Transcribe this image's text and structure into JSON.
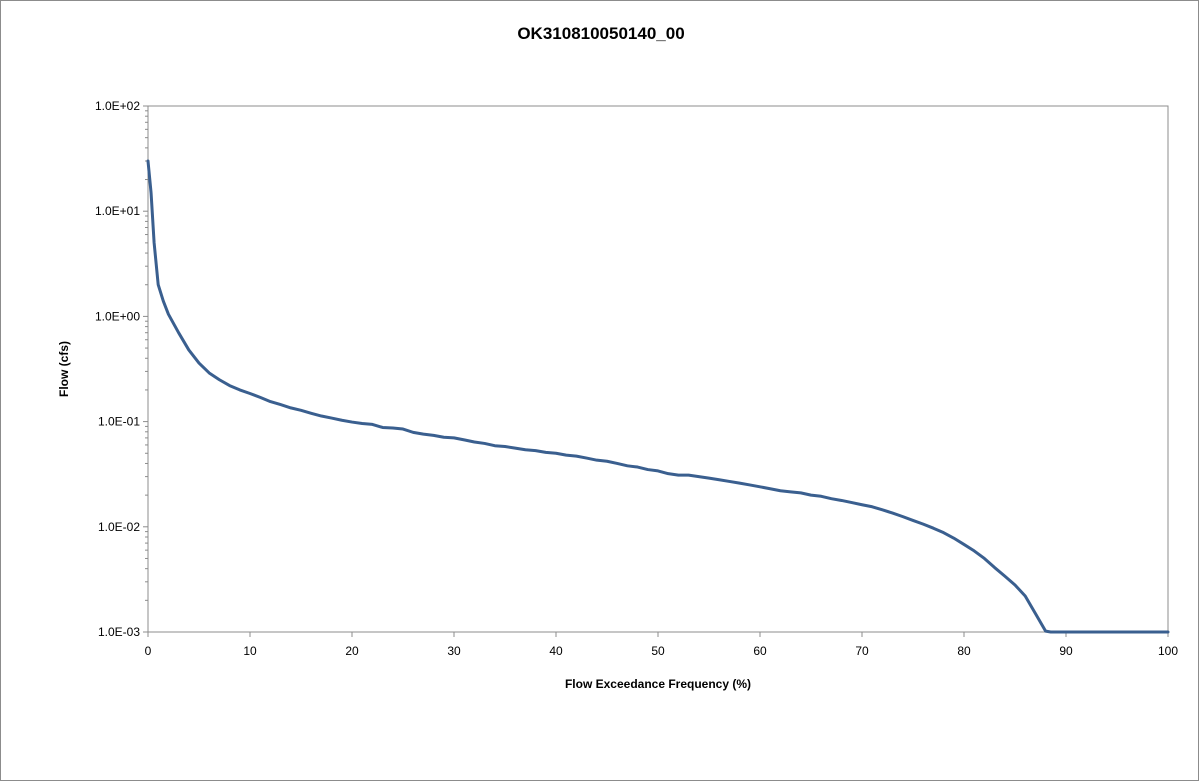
{
  "chart_data": {
    "type": "line",
    "title": "OK310810050140_00",
    "xlabel": "Flow Exceedance Frequency (%)",
    "ylabel": "Flow (cfs)",
    "xlim": [
      0,
      100
    ],
    "ylim": [
      0.001,
      100
    ],
    "y_scale": "log",
    "grid": false,
    "legend": "none",
    "x_ticks": [
      0,
      10,
      20,
      30,
      40,
      50,
      60,
      70,
      80,
      90,
      100
    ],
    "x_tick_labels": [
      "0",
      "10",
      "20",
      "30",
      "40",
      "50",
      "60",
      "70",
      "80",
      "90",
      "100"
    ],
    "y_ticks": [
      0.001,
      0.01,
      0.1,
      1,
      10,
      100
    ],
    "y_tick_labels": [
      "1.0E-03",
      "1.0E-02",
      "1.0E-01",
      "1.0E+00",
      "1.0E+01",
      "1.0E+02"
    ],
    "series": [
      {
        "color": "#3a5f8f",
        "x": [
          0,
          0.3,
          0.6,
          1,
          1.5,
          2,
          3,
          4,
          5,
          6,
          7,
          8,
          9,
          10,
          11,
          12,
          13,
          14,
          15,
          16,
          17,
          18,
          19,
          20,
          21,
          22,
          23,
          24,
          25,
          26,
          27,
          28,
          29,
          30,
          31,
          32,
          33,
          34,
          35,
          36,
          37,
          38,
          39,
          40,
          41,
          42,
          43,
          44,
          45,
          46,
          47,
          48,
          49,
          50,
          51,
          52,
          53,
          54,
          55,
          56,
          57,
          58,
          59,
          60,
          61,
          62,
          63,
          64,
          65,
          66,
          67,
          68,
          69,
          70,
          71,
          72,
          73,
          74,
          75,
          76,
          77,
          78,
          79,
          80,
          81,
          82,
          83,
          84,
          85,
          86,
          87,
          88,
          88.5,
          89,
          90,
          92,
          95,
          100
        ],
        "y": [
          30,
          15,
          5,
          2,
          1.4,
          1.05,
          0.7,
          0.48,
          0.36,
          0.29,
          0.25,
          0.22,
          0.2,
          0.185,
          0.17,
          0.155,
          0.145,
          0.135,
          0.128,
          0.12,
          0.113,
          0.108,
          0.103,
          0.099,
          0.096,
          0.094,
          0.088,
          0.087,
          0.085,
          0.079,
          0.076,
          0.074,
          0.071,
          0.07,
          0.067,
          0.064,
          0.062,
          0.059,
          0.058,
          0.056,
          0.054,
          0.053,
          0.051,
          0.05,
          0.048,
          0.047,
          0.045,
          0.043,
          0.042,
          0.04,
          0.038,
          0.037,
          0.035,
          0.034,
          0.032,
          0.031,
          0.031,
          0.03,
          0.029,
          0.028,
          0.027,
          0.026,
          0.025,
          0.024,
          0.023,
          0.022,
          0.0215,
          0.021,
          0.02,
          0.0195,
          0.0185,
          0.0178,
          0.017,
          0.0162,
          0.0155,
          0.0145,
          0.0135,
          0.0125,
          0.0115,
          0.0106,
          0.0097,
          0.0088,
          0.0078,
          0.0068,
          0.0059,
          0.005,
          0.0041,
          0.0034,
          0.0028,
          0.0022,
          0.0015,
          0.00102,
          0.001,
          0.001,
          0.001,
          0.001,
          0.001,
          0.001
        ]
      }
    ]
  }
}
